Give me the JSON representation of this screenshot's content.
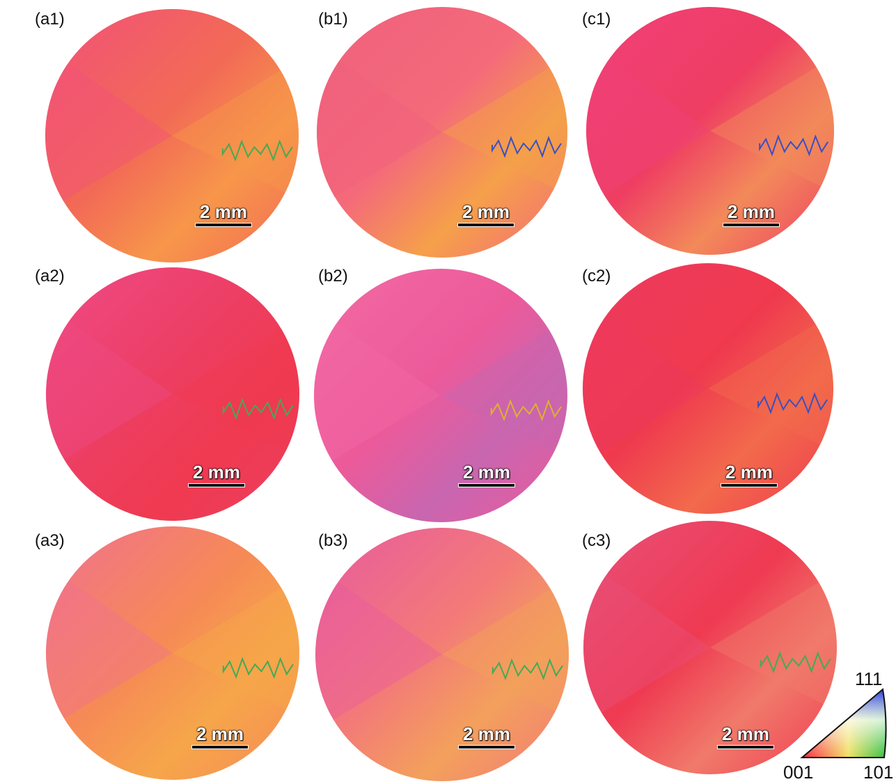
{
  "panels": [
    {
      "id": "a1",
      "label": "(a1)",
      "base": "#f26a56",
      "c1": "#f7964a",
      "c2": "#f2507a",
      "grainColor": "#44aa55"
    },
    {
      "id": "b1",
      "label": "(b1)",
      "base": "#f46a7a",
      "c1": "#f5a04a",
      "c2": "#f0607e",
      "grainColor": "#3a50c0"
    },
    {
      "id": "c1",
      "label": "(c1)",
      "base": "#ef3e62",
      "c1": "#f28a5a",
      "c2": "#f0407a",
      "grainColor": "#3a50c0"
    },
    {
      "id": "a2",
      "label": "(a2)",
      "base": "#ed3e62",
      "c1": "#ef3a50",
      "c2": "#ee4a88",
      "grainColor": "#44aa55"
    },
    {
      "id": "b2",
      "label": "(b2)",
      "base": "#ec5a9a",
      "c1": "#c866b0",
      "c2": "#f36aa4",
      "grainColor": "#e0b030"
    },
    {
      "id": "c2",
      "label": "(c2)",
      "base": "#ef3a4e",
      "c1": "#f26a4c",
      "c2": "#ee3a60",
      "grainColor": "#3a50c0"
    },
    {
      "id": "a3",
      "label": "(a3)",
      "base": "#f68a56",
      "c1": "#f6a64a",
      "c2": "#f07090",
      "grainColor": "#44aa55"
    },
    {
      "id": "b3",
      "label": "(b3)",
      "base": "#f37a78",
      "c1": "#f3a05c",
      "c2": "#e85aa0",
      "grainColor": "#44aa55"
    },
    {
      "id": "c3",
      "label": "(c3)",
      "base": "#ef3a52",
      "c1": "#f07a6a",
      "c2": "#e8507a",
      "grainColor": "#44aa55"
    }
  ],
  "scalebar": {
    "label": "2 mm"
  },
  "ipf_legend": {
    "top": "111",
    "left": "001",
    "right": "101",
    "colors": {
      "c001": "#ff2040",
      "c101": "#30c040",
      "c111": "#3040e0"
    }
  }
}
